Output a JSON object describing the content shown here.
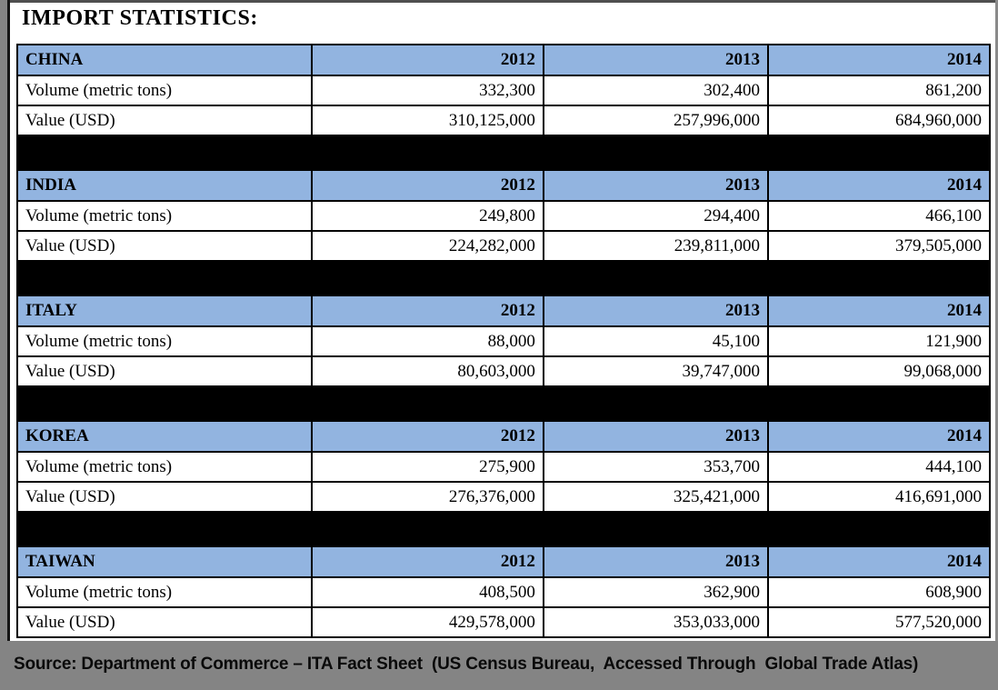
{
  "title": "IMPORT STATISTICS:",
  "row_labels": {
    "volume": "Volume (metric tons)",
    "value": "Value (USD)"
  },
  "footer": {
    "source_line": "Source: Department of Commerce – ITA Fact Sheet  (US Census Bureau,  Accessed Through  Global Trade Atlas)"
  },
  "colors": {
    "header_blue": "#92B4E0",
    "separator_black": "#000000",
    "footer_gray": "#848484",
    "border_black": "#000000"
  },
  "chart_data": {
    "type": "table",
    "title": "IMPORT STATISTICS:",
    "years": [
      "2012",
      "2013",
      "2014"
    ],
    "row_labels": [
      "Volume (metric tons)",
      "Value (USD)"
    ],
    "sections": [
      {
        "country": "CHINA",
        "volume_metric_tons": [
          "332,300",
          "302,400",
          "861,200"
        ],
        "value_usd": [
          "310,125,000",
          "257,996,000",
          "684,960,000"
        ]
      },
      {
        "country": "INDIA",
        "volume_metric_tons": [
          "249,800",
          "294,400",
          "466,100"
        ],
        "value_usd": [
          "224,282,000",
          "239,811,000",
          "379,505,000"
        ]
      },
      {
        "country": "ITALY",
        "volume_metric_tons": [
          "88,000",
          "45,100",
          "121,900"
        ],
        "value_usd": [
          "80,603,000",
          "39,747,000",
          "99,068,000"
        ]
      },
      {
        "country": "KOREA",
        "volume_metric_tons": [
          "275,900",
          "353,700",
          "444,100"
        ],
        "value_usd": [
          "276,376,000",
          "325,421,000",
          "416,691,000"
        ]
      },
      {
        "country": "TAIWAN",
        "volume_metric_tons": [
          "408,500",
          "362,900",
          "608,900"
        ],
        "value_usd": [
          "429,578,000",
          "353,033,000",
          "577,520,000"
        ]
      }
    ]
  }
}
